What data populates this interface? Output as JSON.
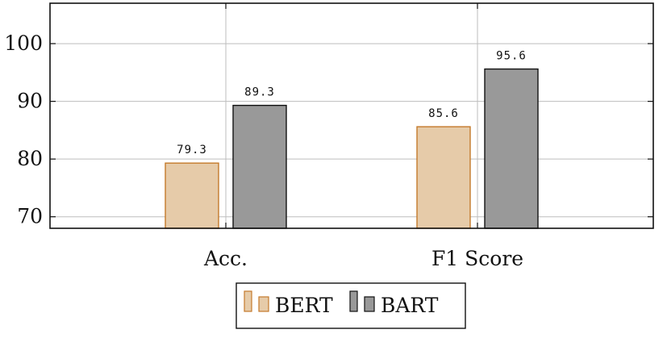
{
  "chart_data": {
    "type": "bar",
    "categories": [
      "Acc.",
      "F1 Score"
    ],
    "series": [
      {
        "name": "BERT",
        "values": [
          79.3,
          85.6
        ],
        "fill": "#e6cba9",
        "stroke": "#c47a2c"
      },
      {
        "name": "BART",
        "values": [
          89.3,
          95.6
        ],
        "fill": "#999999",
        "stroke": "#111111"
      }
    ],
    "data_labels": [
      "79.3",
      "89.3",
      "85.6",
      "95.6"
    ],
    "y_ticks": [
      70,
      80,
      90,
      100
    ],
    "ylim": [
      68,
      107
    ],
    "grid": true,
    "legend_position": "bottom-center",
    "title": "",
    "xlabel": "",
    "ylabel": ""
  }
}
